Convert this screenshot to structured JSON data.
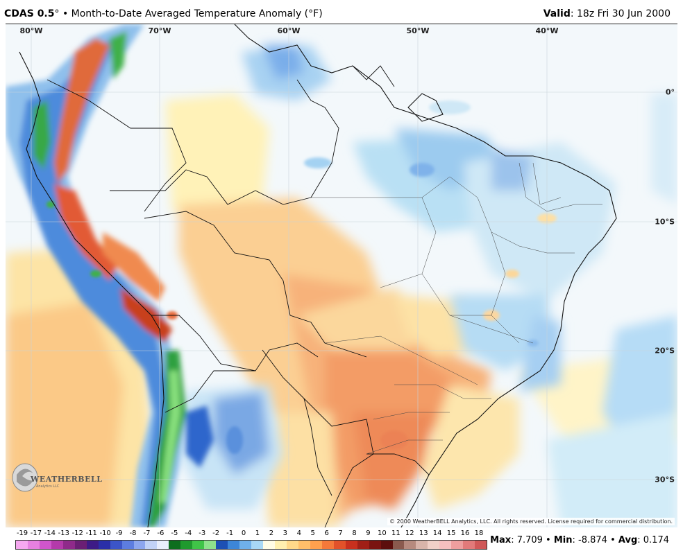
{
  "header": {
    "model": "CDAS 0.5",
    "degree": "°",
    "title_text": " • Month-to-Date Averaged Temperature Anomaly (°F)",
    "valid_label": "Valid",
    "valid_value": ": 18z Fri 30 Jun 2000"
  },
  "map": {
    "lon_labels": [
      "80°W",
      "70°W",
      "60°W",
      "50°W",
      "40°W"
    ],
    "lat_labels": [
      "0°",
      "10°S",
      "20°S",
      "30°S"
    ],
    "copyright": "© 2000 WeatherBELL Analytics, LLC. All rights reserved. License required for commercial distribution.",
    "logo_text": "WEATHERBELL",
    "logo_sub": "Analytics LLC"
  },
  "legend": {
    "ticks": [
      "-19",
      "-17",
      "-14",
      "-13",
      "-12",
      "-11",
      "-10",
      "-9",
      "-8",
      "-7",
      "-6",
      "-5",
      "-4",
      "-3",
      "-2",
      "-1",
      "0",
      "1",
      "2",
      "3",
      "4",
      "5",
      "6",
      "7",
      "8",
      "9",
      "10",
      "11",
      "12",
      "13",
      "14",
      "15",
      "16",
      "18"
    ],
    "colors": [
      "#f6a8f0",
      "#e680e0",
      "#d055cc",
      "#b43aaa",
      "#8f2a8a",
      "#6a1f74",
      "#3d1b86",
      "#2a2fa8",
      "#3c55c8",
      "#5d7de0",
      "#8da6ee",
      "#c2d2f6",
      "#e9eefb",
      "#0e6e1e",
      "#1f9a2e",
      "#40c448",
      "#8fe28c",
      "#1d50b4",
      "#3d86d8",
      "#6fb0ea",
      "#a8d8f6",
      "#fffce6",
      "#fff0b0",
      "#ffd98a",
      "#ffbf6a",
      "#ffa04e",
      "#f5793a",
      "#e2522a",
      "#c8301e",
      "#a01f16",
      "#7a1410",
      "#5c0e0c",
      "#8a5a4e",
      "#b68a7e",
      "#d8b4aa",
      "#f0d0c8",
      "#f6c0c0",
      "#ee9e9e",
      "#e27a7a",
      "#d05858"
    ]
  },
  "stats": {
    "max_label": "Max",
    "max_value": ": 7.709",
    "min_label": "Min",
    "min_value": ": -8.874",
    "avg_label": "Avg",
    "avg_value": ": 0.174",
    "sep": " • "
  }
}
